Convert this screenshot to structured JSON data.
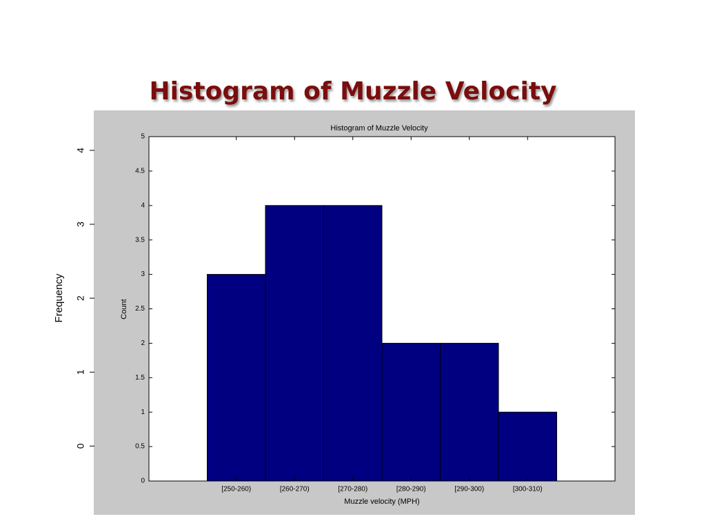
{
  "title": "Histogram of Muzzle Velocity",
  "chart_data": [
    {
      "type": "bar",
      "title": "Histogram of Muzzle Velocity",
      "xlabel": "Muzzle velocity (MPH)",
      "ylabel": "Count",
      "categories": [
        null,
        "[250-260)",
        "[260-270)",
        "[270-280)",
        "[280-290)",
        "[290-300)",
        "[300-310)",
        null
      ],
      "values": [
        null,
        3,
        4,
        4,
        2,
        2,
        1,
        null
      ],
      "color": "#000080",
      "ylim": [
        0,
        5
      ],
      "yticks": [
        0,
        0.5,
        1,
        1.5,
        2,
        2.5,
        3,
        3.5,
        4,
        4.5,
        5
      ]
    },
    {
      "type": "axis",
      "ylabel": "Frequency",
      "ylim": [
        -0.93,
        4.54
      ],
      "yticks": [
        0,
        1,
        2,
        3,
        4
      ]
    }
  ]
}
